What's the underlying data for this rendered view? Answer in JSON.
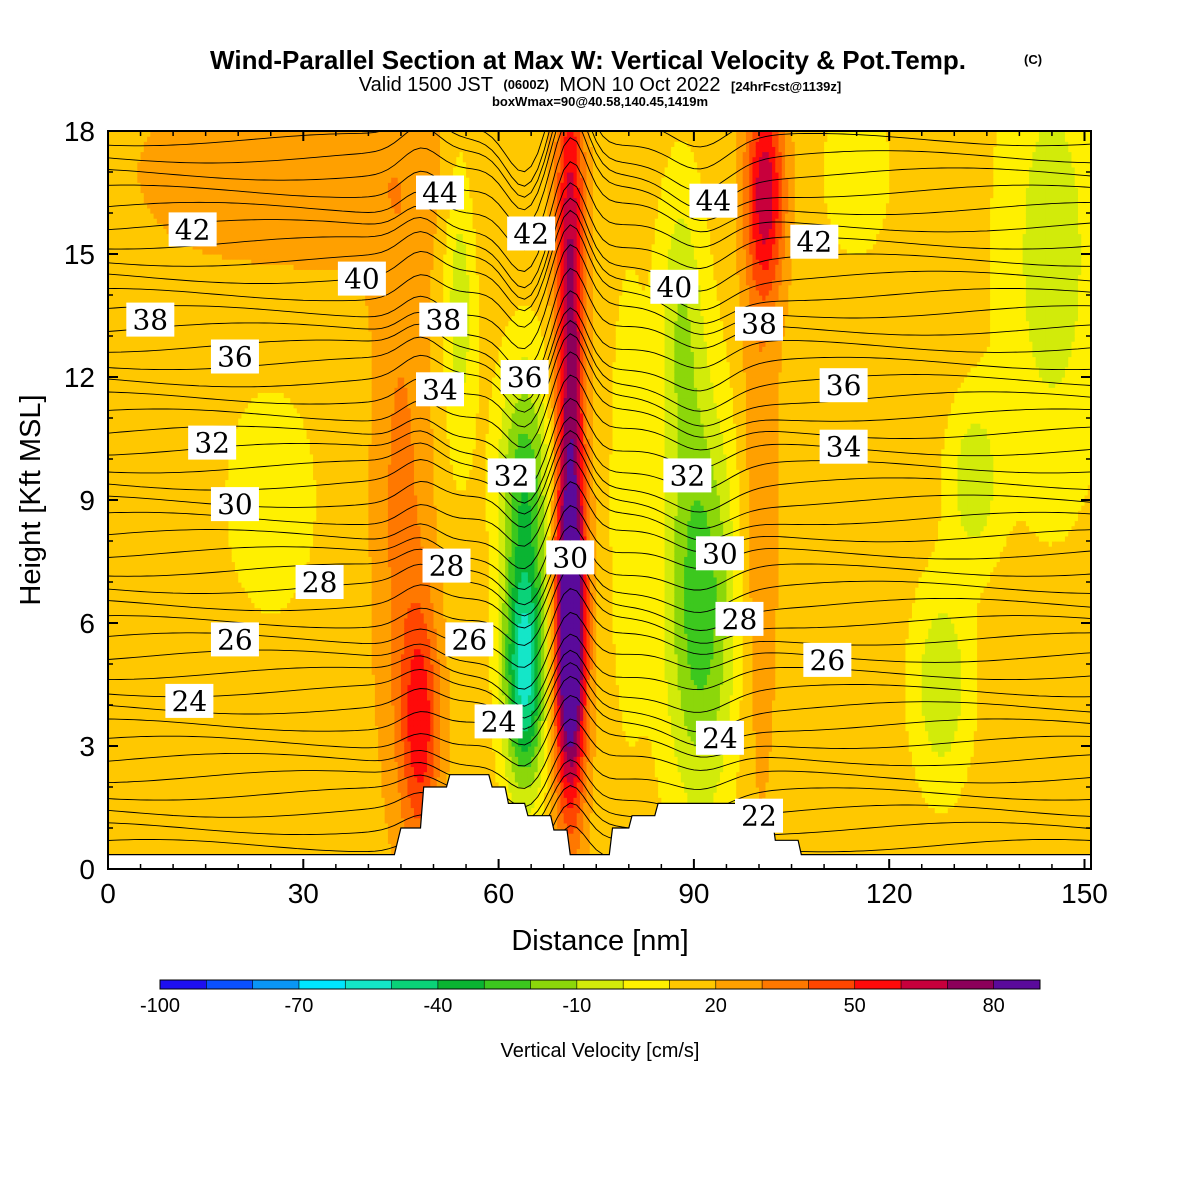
{
  "title": {
    "main": "Wind-Parallel Section at Max W: Vertical Velocity & Pot.Temp.",
    "copyright": "(C)",
    "valid_prefix": "Valid 1500 JST",
    "valid_utc": "(0600Z)",
    "valid_date": "MON 10 Oct 2022",
    "forecast": "[24hrFcst@1139z]",
    "box": "boxWmax=90@40.58,140.45,1419m"
  },
  "chart_data": {
    "type": "heatmap",
    "xlabel": "Distance [nm]",
    "ylabel": "Height [Kft MSL]",
    "xlim": [
      0,
      151
    ],
    "ylim": [
      0,
      18
    ],
    "x_ticks": [
      "0",
      "30",
      "60",
      "90",
      "120",
      "150"
    ],
    "y_ticks": [
      "0",
      "3",
      "6",
      "9",
      "12",
      "15",
      "18"
    ],
    "colorbar": {
      "title": "Vertical Velocity [cm/s]",
      "tick_labels": [
        "-100",
        "-70",
        "-40",
        "-10",
        "20",
        "50",
        "80"
      ],
      "colors": [
        "#1e0ff0",
        "#0a50ff",
        "#0a96f5",
        "#00e6ff",
        "#14e6c8",
        "#0ad278",
        "#0ab432",
        "#3cc81e",
        "#8cd70a",
        "#d2eb0a",
        "#fff000",
        "#ffc800",
        "#ffa000",
        "#ff7800",
        "#ff4600",
        "#ff0a0a",
        "#c8003c",
        "#8c005a",
        "#5a0a9b"
      ]
    },
    "vertical_velocity_features": [
      {
        "x": 71,
        "y": 5.5,
        "w": 90,
        "note": "updraft"
      },
      {
        "x": 71,
        "y": 14,
        "w": 60
      },
      {
        "x": 64,
        "y": 4.5,
        "w": -65,
        "note": "downdraft"
      },
      {
        "x": 65,
        "y": 9,
        "w": -40
      },
      {
        "x": 92,
        "y": 6,
        "w": -45
      },
      {
        "x": 48,
        "y": 3.5,
        "w": 40
      },
      {
        "x": 100,
        "y": 16.5,
        "w": 50
      }
    ],
    "potential_temperature_contours": [
      {
        "theta": 22,
        "x": 100,
        "y": 1.3
      },
      {
        "theta": 24,
        "x": 12.5,
        "y": 4.1
      },
      {
        "theta": 24,
        "x": 60,
        "y": 3.6
      },
      {
        "theta": 24,
        "x": 94,
        "y": 3.2
      },
      {
        "theta": 26,
        "x": 19.5,
        "y": 5.6
      },
      {
        "theta": 26,
        "x": 55.5,
        "y": 5.6
      },
      {
        "theta": 26,
        "x": 110.5,
        "y": 5.1
      },
      {
        "theta": 28,
        "x": 32.5,
        "y": 7.0
      },
      {
        "theta": 28,
        "x": 52,
        "y": 7.4
      },
      {
        "theta": 28,
        "x": 97,
        "y": 6.1
      },
      {
        "theta": 30,
        "x": 19.5,
        "y": 8.9
      },
      {
        "theta": 30,
        "x": 71,
        "y": 7.6
      },
      {
        "theta": 30,
        "x": 94,
        "y": 7.7
      },
      {
        "theta": 32,
        "x": 16,
        "y": 10.4
      },
      {
        "theta": 32,
        "x": 62,
        "y": 9.6
      },
      {
        "theta": 32,
        "x": 89,
        "y": 9.6
      },
      {
        "theta": 34,
        "x": 51,
        "y": 11.7
      },
      {
        "theta": 34,
        "x": 113,
        "y": 10.3
      },
      {
        "theta": 36,
        "x": 19.5,
        "y": 12.5
      },
      {
        "theta": 36,
        "x": 64,
        "y": 12.0
      },
      {
        "theta": 36,
        "x": 113,
        "y": 11.8
      },
      {
        "theta": 38,
        "x": 6.5,
        "y": 13.4
      },
      {
        "theta": 38,
        "x": 51.5,
        "y": 13.4
      },
      {
        "theta": 38,
        "x": 100,
        "y": 13.3
      },
      {
        "theta": 40,
        "x": 39,
        "y": 14.4
      },
      {
        "theta": 40,
        "x": 87,
        "y": 14.2
      },
      {
        "theta": 42,
        "x": 13,
        "y": 15.6
      },
      {
        "theta": 42,
        "x": 65,
        "y": 15.5
      },
      {
        "theta": 42,
        "x": 108.5,
        "y": 15.3
      },
      {
        "theta": 44,
        "x": 51,
        "y": 16.5
      },
      {
        "theta": 44,
        "x": 93,
        "y": 16.3
      }
    ],
    "terrain": [
      [
        0,
        0.35
      ],
      [
        44,
        0.35
      ],
      [
        45,
        1.0
      ],
      [
        48,
        1.0
      ],
      [
        48.5,
        2.0
      ],
      [
        52,
        2.0
      ],
      [
        52.5,
        2.3
      ],
      [
        58.5,
        2.3
      ],
      [
        59,
        2.0
      ],
      [
        61,
        2.0
      ],
      [
        61.5,
        1.6
      ],
      [
        64,
        1.6
      ],
      [
        64.5,
        1.3
      ],
      [
        68,
        1.3
      ],
      [
        68.5,
        0.95
      ],
      [
        70.5,
        0.95
      ],
      [
        71,
        0.35
      ],
      [
        77,
        0.35
      ],
      [
        77.5,
        1.0
      ],
      [
        80,
        1.0
      ],
      [
        80.5,
        1.3
      ],
      [
        84,
        1.3
      ],
      [
        84.5,
        1.6
      ],
      [
        100,
        1.6
      ],
      [
        100.5,
        1.3
      ],
      [
        102,
        1.3
      ],
      [
        102.5,
        0.7
      ],
      [
        106,
        0.7
      ],
      [
        106.5,
        0.35
      ],
      [
        151,
        0.35
      ]
    ]
  }
}
